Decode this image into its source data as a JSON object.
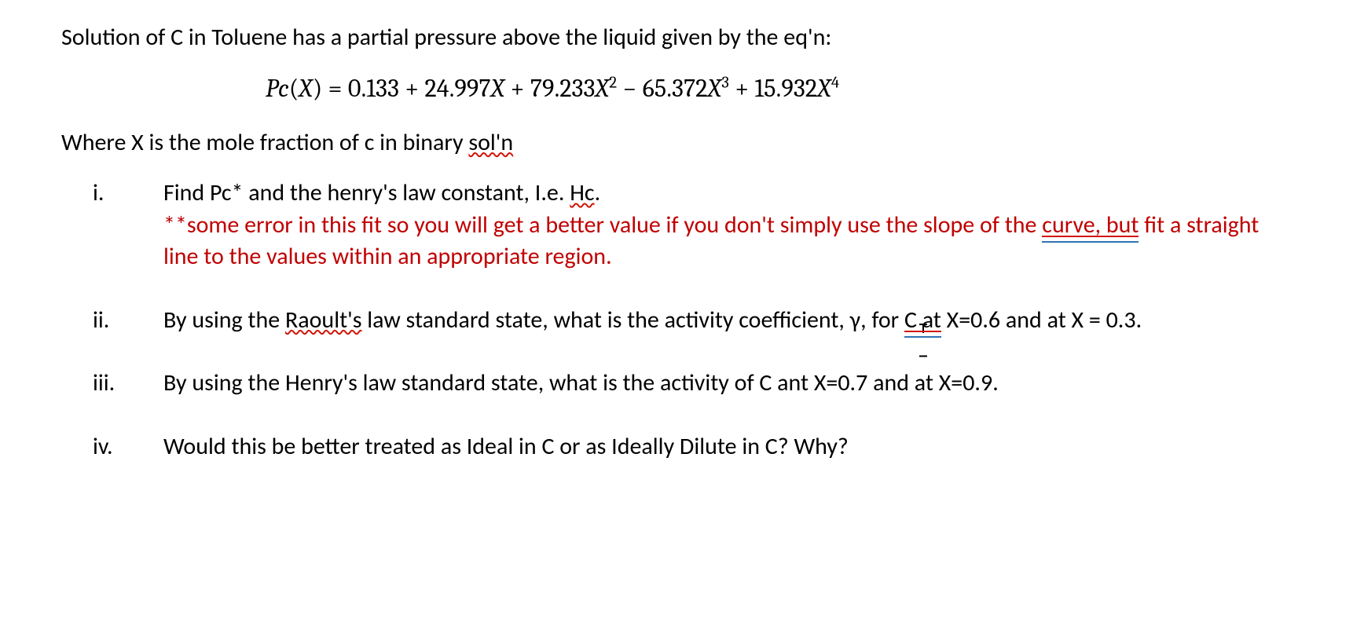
{
  "colors": {
    "text": "#000000",
    "note": "#c00000",
    "squiggle": "#d11507",
    "double_underline_top": "#d11507",
    "double_underline_bottom": "#2e74b5",
    "background": "#ffffff"
  },
  "typography": {
    "body_font": "Calibri",
    "body_size_pt": 22,
    "equation_font": "Cambria Math",
    "equation_size_pt": 24
  },
  "intro": {
    "line1": "Solution of C in Toluene has a partial pressure above the liquid given by the eq'n:"
  },
  "equation": {
    "lhs_func": "Pc",
    "lhs_arg": "X",
    "c0": "0.133",
    "c1": "24.997",
    "c2": "79.233",
    "c3": "65.372",
    "c4": "15.932",
    "display": "Pc(X) = 0.133 + 24.997X + 79.233X² − 65.372X³ + 15.932X⁴"
  },
  "where": {
    "prefix": "Where X is the mole fraction of c in binary ",
    "soln_word": "sol'n"
  },
  "items": {
    "i": {
      "marker": "i.",
      "line1_a": "Find Pc* and the henry's law constant, I.e. ",
      "hc_word": "Hc",
      "line1_b": ".",
      "note_a": "**some error in this fit so you will get a better value if you don't simply use the slope of the ",
      "curve_but": "curve, but",
      "note_b": " fit a straight line to the values within an appropriate region."
    },
    "ii": {
      "marker": "ii.",
      "a": "By using the ",
      "raoults": "Raoult's",
      "b": " law standard state, what is the activity coefficient, γ, for ",
      "c_at": "C at",
      "c": " X=0.6 and at X = 0.3."
    },
    "iii": {
      "marker": "iii.",
      "text": "By using the Henry's law standard state, what is the activity of C ant X=0.7 and at X=0.9."
    },
    "iv": {
      "marker": "iv.",
      "text": "Would this be better treated as Ideal in C or as Ideally Dilute in C? Why?"
    }
  }
}
